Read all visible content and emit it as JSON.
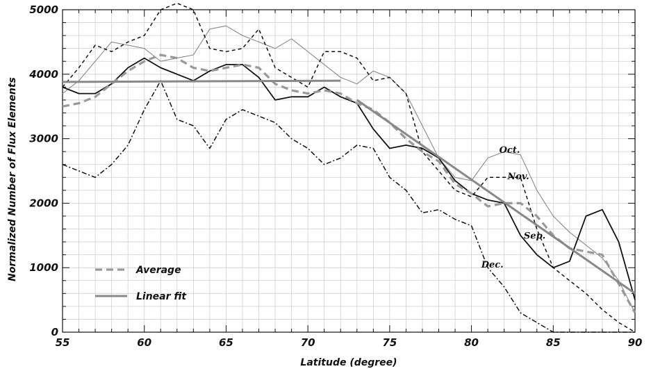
{
  "chart_data": {
    "type": "line",
    "xlabel": "Latitude (degree)",
    "ylabel": "Normalized Number of Flux Elements",
    "xlim": [
      55,
      90
    ],
    "ylim": [
      0,
      5000
    ],
    "xticks": [
      55,
      60,
      65,
      70,
      75,
      80,
      85,
      90
    ],
    "yticks": [
      0,
      1000,
      2000,
      3000,
      4000,
      5000
    ],
    "grid": true,
    "legend": {
      "placement": "bottom-left",
      "entries": [
        "Average",
        "Linear fit"
      ]
    },
    "series": [
      {
        "name": "Oct.",
        "style": "thin-solid",
        "color": "#888888",
        "x": [
          55,
          56,
          57,
          58,
          59,
          60,
          61,
          62,
          63,
          64,
          65,
          66,
          67,
          68,
          69,
          70,
          71,
          72,
          73,
          74,
          75,
          76,
          77,
          78,
          79,
          80,
          81,
          82,
          83,
          84,
          85,
          86,
          87,
          88,
          89,
          90
        ],
        "y": [
          3700,
          3900,
          4200,
          4500,
          4450,
          4400,
          4200,
          4250,
          4300,
          4700,
          4750,
          4600,
          4500,
          4400,
          4550,
          4350,
          4150,
          3950,
          3850,
          4050,
          3950,
          3700,
          3200,
          2700,
          2400,
          2350,
          2700,
          2800,
          2750,
          2200,
          1800,
          1550,
          1350,
          1150,
          800,
          300
        ]
      },
      {
        "name": "Nov.",
        "style": "dashed",
        "color": "#111111",
        "x": [
          55,
          56,
          57,
          58,
          59,
          60,
          61,
          62,
          63,
          64,
          65,
          66,
          67,
          68,
          69,
          70,
          71,
          72,
          73,
          74,
          75,
          76,
          77,
          78,
          79,
          80,
          81,
          82,
          83,
          84,
          85,
          86,
          87,
          88,
          89,
          90
        ],
        "y": [
          3800,
          4100,
          4450,
          4350,
          4500,
          4600,
          5000,
          5100,
          5000,
          4400,
          4350,
          4400,
          4700,
          4100,
          3950,
          3800,
          4350,
          4350,
          4250,
          3900,
          3950,
          3700,
          2800,
          2500,
          2200,
          2100,
          2400,
          2400,
          2400,
          1600,
          1000,
          800,
          600,
          350,
          150,
          0
        ]
      },
      {
        "name": "Sep.",
        "style": "solid",
        "color": "#111111",
        "x": [
          55,
          56,
          57,
          58,
          59,
          60,
          61,
          62,
          63,
          64,
          65,
          66,
          67,
          68,
          69,
          70,
          71,
          72,
          73,
          74,
          75,
          76,
          77,
          78,
          79,
          80,
          81,
          82,
          83,
          84,
          85,
          86,
          87,
          88,
          89,
          90
        ],
        "y": [
          3800,
          3700,
          3700,
          3850,
          4100,
          4250,
          4100,
          4000,
          3900,
          4050,
          4150,
          4150,
          3950,
          3600,
          3650,
          3650,
          3800,
          3650,
          3550,
          3150,
          2850,
          2900,
          2850,
          2700,
          2350,
          2150,
          2050,
          2000,
          1500,
          1200,
          1000,
          1100,
          1800,
          1900,
          1400,
          500
        ]
      },
      {
        "name": "Dec.",
        "style": "dash-dot",
        "color": "#111111",
        "x": [
          55,
          56,
          57,
          58,
          59,
          60,
          61,
          62,
          63,
          64,
          65,
          66,
          67,
          68,
          69,
          70,
          71,
          72,
          73,
          74,
          75,
          76,
          77,
          78,
          79,
          80,
          81,
          82,
          83,
          84,
          85,
          86,
          87,
          88,
          89,
          90
        ],
        "y": [
          2600,
          2500,
          2400,
          2600,
          2900,
          3450,
          3900,
          3300,
          3200,
          2850,
          3300,
          3450,
          3350,
          3250,
          3000,
          2850,
          2600,
          2700,
          2900,
          2850,
          2400,
          2200,
          1850,
          1900,
          1750,
          1650,
          1000,
          700,
          300,
          150,
          0,
          0,
          0,
          0,
          0,
          0
        ]
      },
      {
        "name": "Average",
        "style": "thick-dashed",
        "color": "#999999",
        "x": [
          55,
          56,
          57,
          58,
          59,
          60,
          61,
          62,
          63,
          64,
          65,
          66,
          67,
          68,
          69,
          70,
          71,
          72,
          73,
          74,
          75,
          76,
          77,
          78,
          79,
          80,
          81,
          82,
          83,
          84,
          85,
          86,
          87,
          88,
          89,
          90
        ],
        "y": [
          3500,
          3550,
          3650,
          3850,
          4050,
          4200,
          4300,
          4250,
          4100,
          4050,
          4100,
          4150,
          4100,
          3850,
          3750,
          3700,
          3750,
          3700,
          3550,
          3450,
          3250,
          3000,
          2800,
          2650,
          2300,
          2150,
          1950,
          2000,
          2000,
          1800,
          1500,
          1300,
          1250,
          1200,
          750,
          300
        ]
      },
      {
        "name": "Linear fit",
        "style": "thick-solid",
        "color": "#888888",
        "segments": [
          {
            "x": [
              55,
              72
            ],
            "y": [
              3880,
              3900
            ]
          },
          {
            "x": [
              73,
              90
            ],
            "y": [
              3600,
              600
            ]
          }
        ]
      }
    ],
    "annotations": [
      {
        "text": "Oct.",
        "x": 81.7,
        "y": 2780
      },
      {
        "text": "Nov.",
        "x": 82.2,
        "y": 2370
      },
      {
        "text": "Sep.",
        "x": 83.2,
        "y": 1450
      },
      {
        "text": "Dec.",
        "x": 80.6,
        "y": 1000
      }
    ]
  }
}
